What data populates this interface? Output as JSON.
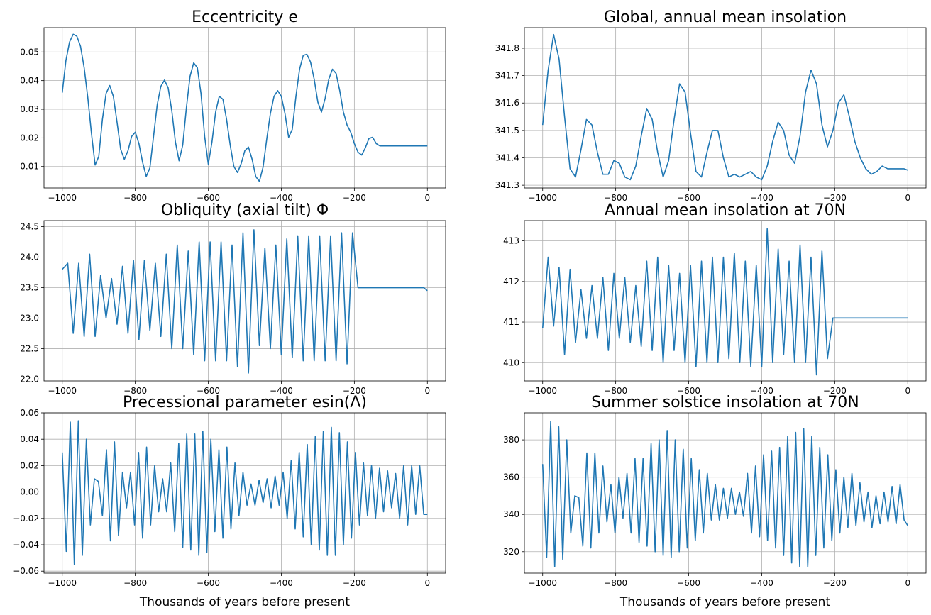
{
  "figure": {
    "line_color": "#1f77b4",
    "grid_color": "#b0b0b0",
    "axes_color": "#000000"
  },
  "chart_data": [
    {
      "type": "line",
      "title": "Eccentricity e",
      "xlabel": "",
      "ylabel": "",
      "xlim": [
        -1050,
        50
      ],
      "ylim": [
        0.0025,
        0.0585
      ],
      "xticks": [
        -1000,
        -800,
        -600,
        -400,
        -200,
        0
      ],
      "xtick_labels": [
        "−1000",
        "−800",
        "−600",
        "−400",
        "−200",
        "0"
      ],
      "yticks": [
        0.01,
        0.02,
        0.03,
        0.04,
        0.05
      ],
      "ytick_labels": [
        "0.01",
        "0.02",
        "0.03",
        "0.04",
        "0.05"
      ],
      "grid": true,
      "x": [
        -1000,
        -990,
        -980,
        -970,
        -960,
        -950,
        -940,
        -930,
        -920,
        -910,
        -900,
        -890,
        -880,
        -870,
        -860,
        -850,
        -840,
        -830,
        -820,
        -810,
        -800,
        -790,
        -780,
        -770,
        -760,
        -750,
        -740,
        -730,
        -720,
        -710,
        -700,
        -690,
        -680,
        -670,
        -660,
        -650,
        -640,
        -630,
        -620,
        -610,
        -600,
        -590,
        -580,
        -570,
        -560,
        -550,
        -540,
        -530,
        -520,
        -510,
        -500,
        -490,
        -480,
        -470,
        -460,
        -450,
        -440,
        -430,
        -420,
        -410,
        -400,
        -390,
        -380,
        -370,
        -360,
        -350,
        -340,
        -330,
        -320,
        -310,
        -300,
        -290,
        -280,
        -270,
        -260,
        -250,
        -240,
        -230,
        -220,
        -210,
        -200,
        -190,
        -180,
        -170,
        -160,
        -150,
        -140,
        -130,
        -120,
        -110,
        -100,
        -90,
        -80,
        -70,
        -60,
        -50,
        -40,
        -30,
        -20,
        -10,
        0
      ],
      "y": [
        0.0358,
        0.047,
        0.0535,
        0.0562,
        0.0555,
        0.052,
        0.0445,
        0.034,
        0.0215,
        0.0105,
        0.0135,
        0.0265,
        0.0355,
        0.0383,
        0.0345,
        0.0255,
        0.016,
        0.0125,
        0.0155,
        0.0205,
        0.022,
        0.018,
        0.0115,
        0.0065,
        0.0095,
        0.0205,
        0.0315,
        0.038,
        0.0402,
        0.0375,
        0.0295,
        0.0185,
        0.012,
        0.0175,
        0.0305,
        0.0415,
        0.0462,
        0.0445,
        0.0355,
        0.0205,
        0.0108,
        0.0185,
        0.029,
        0.0345,
        0.0335,
        0.0265,
        0.0175,
        0.01,
        0.0079,
        0.011,
        0.0155,
        0.0168,
        0.0125,
        0.0065,
        0.0048,
        0.0098,
        0.0195,
        0.0285,
        0.0345,
        0.0365,
        0.0345,
        0.0285,
        0.0202,
        0.023,
        0.0345,
        0.044,
        0.0488,
        0.0492,
        0.0465,
        0.0405,
        0.0325,
        0.029,
        0.0338,
        0.0405,
        0.044,
        0.0425,
        0.0365,
        0.029,
        0.0245,
        0.022,
        0.018,
        0.015,
        0.014,
        0.0165,
        0.0198,
        0.0202,
        0.018,
        0.0172,
        0.0172,
        0.0172,
        0.0172,
        0.0172,
        0.0172,
        0.0172,
        0.0172,
        0.0172,
        0.0172,
        0.0172,
        0.0172,
        0.0172,
        0.0172
      ]
    },
    {
      "type": "line",
      "title": "Global, annual mean insolation",
      "xlabel": "",
      "ylabel": "",
      "xlim": [
        -1050,
        50
      ],
      "ylim": [
        341.29,
        341.875
      ],
      "xticks": [
        -1000,
        -800,
        -600,
        -400,
        -200,
        0
      ],
      "xtick_labels": [
        "−1000",
        "−800",
        "−600",
        "−400",
        "−200",
        "0"
      ],
      "yticks": [
        341.3,
        341.4,
        341.5,
        341.6,
        341.7,
        341.8
      ],
      "ytick_labels": [
        "341.3",
        "341.4",
        "341.5",
        "341.6",
        "341.7",
        "341.8"
      ],
      "grid": true,
      "x": [
        -1000,
        -985,
        -970,
        -955,
        -940,
        -925,
        -910,
        -895,
        -880,
        -865,
        -850,
        -835,
        -820,
        -805,
        -790,
        -775,
        -760,
        -745,
        -730,
        -715,
        -700,
        -685,
        -670,
        -655,
        -640,
        -625,
        -610,
        -595,
        -580,
        -565,
        -550,
        -535,
        -520,
        -505,
        -490,
        -475,
        -460,
        -445,
        -430,
        -415,
        -400,
        -385,
        -370,
        -355,
        -340,
        -325,
        -310,
        -295,
        -280,
        -265,
        -250,
        -235,
        -220,
        -205,
        -190,
        -175,
        -160,
        -145,
        -130,
        -115,
        -100,
        -85,
        -70,
        -55,
        -40,
        -25,
        -10,
        0
      ],
      "y": [
        341.52,
        341.72,
        341.85,
        341.76,
        341.55,
        341.36,
        341.33,
        341.43,
        341.54,
        341.52,
        341.42,
        341.34,
        341.34,
        341.39,
        341.38,
        341.33,
        341.32,
        341.37,
        341.48,
        341.58,
        341.54,
        341.42,
        341.33,
        341.39,
        341.54,
        341.67,
        341.64,
        341.49,
        341.35,
        341.33,
        341.42,
        341.5,
        341.5,
        341.4,
        341.33,
        341.34,
        341.33,
        341.34,
        341.35,
        341.33,
        341.32,
        341.37,
        341.46,
        341.53,
        341.5,
        341.41,
        341.38,
        341.48,
        341.64,
        341.72,
        341.67,
        341.52,
        341.44,
        341.5,
        341.6,
        341.63,
        341.55,
        341.46,
        341.4,
        341.36,
        341.34,
        341.35,
        341.37,
        341.36,
        341.36,
        341.36,
        341.36,
        341.355
      ]
    },
    {
      "type": "line",
      "title": "Obliquity (axial tilt) Φ",
      "xlabel": "",
      "ylabel": "",
      "xlim": [
        -1050,
        50
      ],
      "ylim": [
        21.97,
        24.6
      ],
      "xticks": [
        -1000,
        -800,
        -600,
        -400,
        -200,
        0
      ],
      "xtick_labels": [
        "−1000",
        "−800",
        "−600",
        "−400",
        "−200",
        "0"
      ],
      "yticks": [
        22.0,
        22.5,
        23.0,
        23.5,
        24.0,
        24.5
      ],
      "ytick_labels": [
        "22.0",
        "22.5",
        "23.0",
        "23.5",
        "24.0",
        "24.5"
      ],
      "grid": true,
      "x": [
        -1000,
        -985,
        -970,
        -955,
        -940,
        -925,
        -910,
        -895,
        -880,
        -865,
        -850,
        -835,
        -820,
        -805,
        -790,
        -775,
        -760,
        -745,
        -730,
        -715,
        -700,
        -685,
        -670,
        -655,
        -640,
        -625,
        -610,
        -595,
        -580,
        -565,
        -550,
        -535,
        -520,
        -505,
        -490,
        -475,
        -460,
        -445,
        -430,
        -415,
        -400,
        -385,
        -370,
        -355,
        -340,
        -325,
        -310,
        -295,
        -280,
        -265,
        -250,
        -235,
        -220,
        -205,
        -190,
        -175,
        -160,
        -145,
        -130,
        -115,
        -100,
        -85,
        -70,
        -55,
        -40,
        -25,
        -10,
        0
      ],
      "y": [
        23.8,
        23.9,
        22.75,
        23.9,
        22.7,
        24.05,
        22.7,
        23.7,
        23.0,
        23.65,
        22.9,
        23.85,
        22.75,
        23.95,
        22.65,
        23.95,
        22.8,
        23.9,
        22.7,
        24.05,
        22.5,
        24.2,
        22.5,
        24.1,
        22.4,
        24.25,
        22.3,
        24.25,
        22.3,
        24.25,
        22.3,
        24.2,
        22.2,
        24.4,
        22.1,
        24.45,
        22.55,
        24.15,
        22.5,
        24.2,
        22.4,
        24.3,
        22.35,
        24.35,
        22.3,
        24.35,
        22.3,
        24.35,
        22.3,
        24.35,
        22.3,
        24.4,
        22.25,
        24.4,
        23.5,
        23.5,
        23.5,
        23.5,
        23.5,
        23.5,
        23.5,
        23.5,
        23.5,
        23.5,
        23.5,
        23.5,
        23.5,
        23.45
      ]
    },
    {
      "type": "line",
      "title": "Annual mean insolation at 70N",
      "xlabel": "",
      "ylabel": "",
      "xlim": [
        -1050,
        50
      ],
      "ylim": [
        409.55,
        413.5
      ],
      "xticks": [
        -1000,
        -800,
        -600,
        -400,
        -200,
        0
      ],
      "xtick_labels": [
        "−1000",
        "−800",
        "−600",
        "−400",
        "−200",
        "0"
      ],
      "yticks": [
        410,
        411,
        412,
        413
      ],
      "ytick_labels": [
        "410",
        "411",
        "412",
        "413"
      ],
      "grid": true,
      "x": [
        -1000,
        -985,
        -970,
        -955,
        -940,
        -925,
        -910,
        -895,
        -880,
        -865,
        -850,
        -835,
        -820,
        -805,
        -790,
        -775,
        -760,
        -745,
        -730,
        -715,
        -700,
        -685,
        -670,
        -655,
        -640,
        -625,
        -610,
        -595,
        -580,
        -565,
        -550,
        -535,
        -520,
        -505,
        -490,
        -475,
        -460,
        -445,
        -430,
        -415,
        -400,
        -385,
        -370,
        -355,
        -340,
        -325,
        -310,
        -295,
        -280,
        -265,
        -250,
        -235,
        -220,
        -205,
        -190,
        -175,
        -160,
        -145,
        -130,
        -115,
        -100,
        -85,
        -70,
        -55,
        -40,
        -25,
        -10,
        0
      ],
      "y": [
        410.85,
        412.6,
        410.9,
        412.35,
        410.2,
        412.3,
        410.5,
        411.8,
        410.6,
        411.9,
        410.6,
        412.1,
        410.3,
        412.2,
        410.6,
        412.1,
        410.5,
        411.9,
        410.4,
        412.5,
        410.3,
        412.6,
        410.0,
        412.4,
        410.3,
        412.2,
        410.0,
        412.4,
        409.9,
        412.5,
        410.0,
        412.6,
        410.0,
        412.6,
        410.1,
        412.7,
        410.0,
        412.5,
        409.9,
        412.4,
        409.9,
        413.3,
        410.0,
        412.8,
        410.2,
        412.5,
        410.0,
        412.9,
        410.0,
        412.6,
        409.7,
        412.75,
        410.1,
        411.1,
        411.1,
        411.1,
        411.1,
        411.1,
        411.1,
        411.1,
        411.1,
        411.1,
        411.1,
        411.1,
        411.1,
        411.1,
        411.1,
        411.1
      ]
    },
    {
      "type": "line",
      "title": "Precessional parameter esin(Λ)",
      "xlabel": "Thousands of years before present",
      "ylabel": "",
      "xlim": [
        -1050,
        50
      ],
      "ylim": [
        -0.0615,
        0.06
      ],
      "xticks": [
        -1000,
        -800,
        -600,
        -400,
        -200,
        0
      ],
      "xtick_labels": [
        "−1000",
        "−800",
        "−600",
        "−400",
        "−200",
        "0"
      ],
      "yticks": [
        -0.06,
        -0.04,
        -0.02,
        0.0,
        0.02,
        0.04,
        0.06
      ],
      "ytick_labels": [
        "−0.06",
        "−0.04",
        "−0.02",
        "0.00",
        "0.02",
        "0.04",
        "0.06"
      ],
      "grid": true,
      "x": [
        -1000,
        -989,
        -978,
        -967,
        -956,
        -945,
        -934,
        -923,
        -912,
        -901,
        -890,
        -879,
        -868,
        -857,
        -846,
        -835,
        -824,
        -813,
        -802,
        -791,
        -780,
        -769,
        -758,
        -747,
        -736,
        -725,
        -714,
        -703,
        -692,
        -681,
        -670,
        -659,
        -648,
        -637,
        -626,
        -615,
        -604,
        -593,
        -582,
        -571,
        -560,
        -549,
        -538,
        -527,
        -516,
        -505,
        -494,
        -483,
        -472,
        -461,
        -450,
        -439,
        -428,
        -417,
        -406,
        -395,
        -384,
        -373,
        -362,
        -351,
        -340,
        -329,
        -318,
        -307,
        -296,
        -285,
        -274,
        -263,
        -252,
        -241,
        -230,
        -219,
        -208,
        -197,
        -186,
        -175,
        -164,
        -153,
        -142,
        -131,
        -120,
        -109,
        -98,
        -87,
        -76,
        -65,
        -54,
        -43,
        -32,
        -21,
        -10,
        0
      ],
      "y": [
        0.03,
        -0.045,
        0.053,
        -0.055,
        0.054,
        -0.048,
        0.04,
        -0.025,
        0.01,
        0.008,
        -0.018,
        0.032,
        -0.037,
        0.038,
        -0.033,
        0.015,
        -0.012,
        0.015,
        -0.025,
        0.03,
        -0.035,
        0.034,
        -0.025,
        0.02,
        -0.015,
        0.01,
        -0.015,
        0.022,
        -0.03,
        0.037,
        -0.042,
        0.044,
        -0.044,
        0.044,
        -0.048,
        0.046,
        -0.046,
        0.04,
        -0.03,
        0.032,
        -0.035,
        0.034,
        -0.028,
        0.022,
        -0.018,
        0.015,
        -0.01,
        0.006,
        -0.01,
        0.009,
        -0.008,
        0.01,
        -0.012,
        0.012,
        -0.01,
        0.015,
        -0.02,
        0.024,
        -0.028,
        0.03,
        -0.034,
        0.036,
        -0.04,
        0.042,
        -0.044,
        0.046,
        -0.048,
        0.049,
        -0.048,
        0.045,
        -0.04,
        0.038,
        -0.035,
        0.03,
        -0.025,
        0.022,
        -0.018,
        0.02,
        -0.02,
        0.018,
        -0.015,
        0.016,
        -0.012,
        0.014,
        -0.02,
        0.02,
        -0.025,
        0.02,
        -0.017,
        0.02,
        -0.017,
        -0.017
      ]
    },
    {
      "type": "line",
      "title": "Summer solstice insolation at 70N",
      "xlabel": "Thousands of years before present",
      "ylabel": "",
      "xlim": [
        -1050,
        50
      ],
      "ylim": [
        308.5,
        394.5
      ],
      "xticks": [
        -1000,
        -800,
        -600,
        -400,
        -200,
        0
      ],
      "xtick_labels": [
        "−1000",
        "−800",
        "−600",
        "−400",
        "−200",
        "0"
      ],
      "yticks": [
        320,
        340,
        360,
        380
      ],
      "ytick_labels": [
        "320",
        "340",
        "360",
        "380"
      ],
      "grid": true,
      "x": [
        -1000,
        -989,
        -978,
        -967,
        -956,
        -945,
        -934,
        -923,
        -912,
        -901,
        -890,
        -879,
        -868,
        -857,
        -846,
        -835,
        -824,
        -813,
        -802,
        -791,
        -780,
        -769,
        -758,
        -747,
        -736,
        -725,
        -714,
        -703,
        -692,
        -681,
        -670,
        -659,
        -648,
        -637,
        -626,
        -615,
        -604,
        -593,
        -582,
        -571,
        -560,
        -549,
        -538,
        -527,
        -516,
        -505,
        -494,
        -483,
        -472,
        -461,
        -450,
        -439,
        -428,
        -417,
        -406,
        -395,
        -384,
        -373,
        -362,
        -351,
        -340,
        -329,
        -318,
        -307,
        -296,
        -285,
        -274,
        -263,
        -252,
        -241,
        -230,
        -219,
        -208,
        -197,
        -186,
        -175,
        -164,
        -153,
        -142,
        -131,
        -120,
        -109,
        -98,
        -87,
        -76,
        -65,
        -54,
        -43,
        -32,
        -21,
        -10,
        0
      ],
      "y": [
        367,
        317,
        390,
        312,
        387,
        316,
        380,
        330,
        350,
        349,
        323,
        373,
        322,
        373,
        330,
        366,
        336,
        356,
        330,
        360,
        338,
        362,
        330,
        370,
        325,
        370,
        323,
        378,
        320,
        380,
        318,
        385,
        317,
        380,
        320,
        375,
        322,
        370,
        326,
        364,
        330,
        362,
        337,
        356,
        337,
        354,
        338,
        354,
        340,
        352,
        339,
        362,
        330,
        366,
        328,
        372,
        326,
        374,
        322,
        376,
        318,
        382,
        314,
        384,
        312,
        386,
        312,
        382,
        318,
        376,
        322,
        372,
        326,
        364,
        330,
        360,
        333,
        362,
        334,
        357,
        336,
        352,
        333,
        350,
        335,
        352,
        336,
        355,
        335,
        356,
        337,
        334
      ]
    }
  ]
}
